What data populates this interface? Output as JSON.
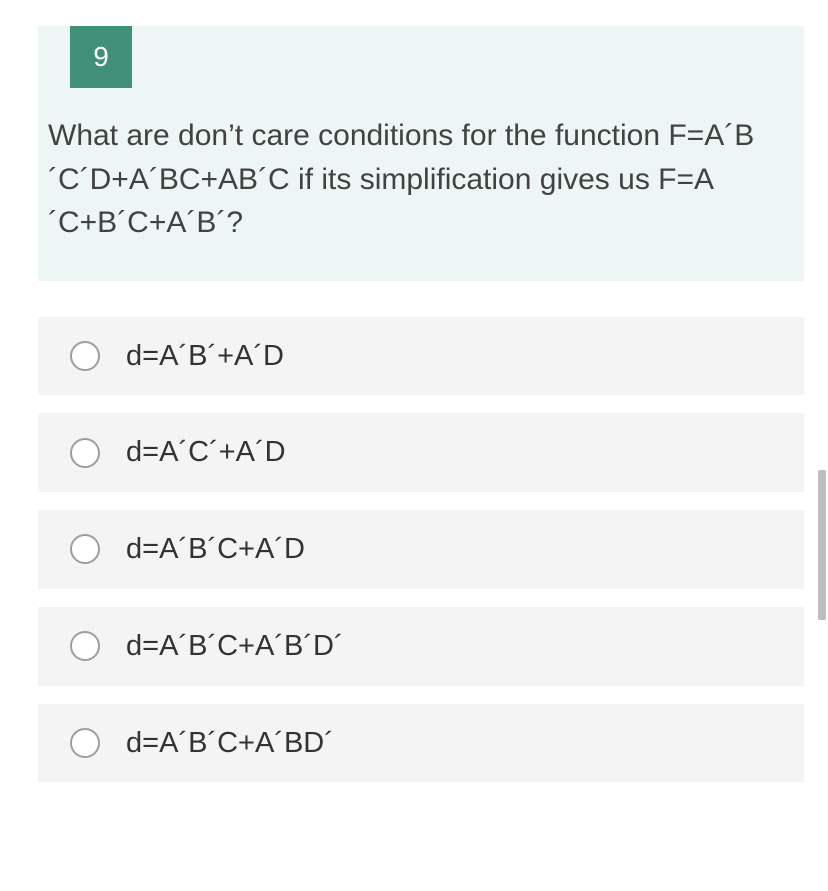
{
  "colors": {
    "page_bg": "#ffffff",
    "card_bg": "#eef5f5",
    "badge_bg": "#3f9077",
    "badge_text": "#ffffff",
    "question_text": "#424242",
    "option_bg": "#f4f4f4",
    "option_text": "#333333",
    "radio_border": "#9e9e9e",
    "scroll_thumb": "#bdbdbd"
  },
  "typography": {
    "badge_fontsize": 28,
    "question_fontsize": 30,
    "option_fontsize": 29,
    "question_lineheight": 1.45
  },
  "question": {
    "number": "9",
    "text": "What are don’t care conditions for the function F=A´B´C´D+A´BC+AB´C if its simplification gives us F=A´C+B´C+A´B´?"
  },
  "options": [
    {
      "label": "d=A´B´+A´D"
    },
    {
      "label": "d=A´C´+A´D"
    },
    {
      "label": "d=A´B´C+A´D"
    },
    {
      "label": "d=A´B´C+A´B´D´"
    },
    {
      "label": "d=A´B´C+A´BD´"
    }
  ]
}
